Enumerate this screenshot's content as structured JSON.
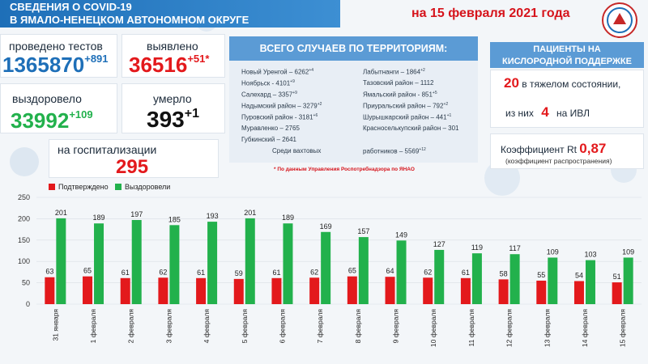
{
  "header": {
    "title_line1": "СВЕДЕНИЯ О COVID-19",
    "title_line2": "В ЯМАЛО-НЕНЕЦКОМ АВТОНОМНОМ ОКРУГЕ",
    "date": "на 15 февраля 2021 года"
  },
  "stats": {
    "tests_label": "проведено тестов",
    "tests_value": "1365870",
    "tests_delta": "+891",
    "detected_label": "выявлено",
    "detected_value": "36516",
    "detected_delta": "+51*",
    "recovered_label": "выздоровело",
    "recovered_value": "33992",
    "recovered_delta": "+109",
    "died_label": "умерло",
    "died_value": "393",
    "died_delta": "+1",
    "hosp_label": "на госпитализации",
    "hosp_value": "295"
  },
  "territory": {
    "title": "ВСЕГО СЛУЧАЕВ ПО ТЕРРИТОРИЯМ:",
    "left": [
      {
        "name": "Новый Уренгой – 6262",
        "d": "+4"
      },
      {
        "name": "Ноябрьск - 4101",
        "d": "+9"
      },
      {
        "name": "Салехард – 3357",
        "d": "+9"
      },
      {
        "name": "Надымский район – 3279",
        "d": "+2"
      },
      {
        "name": "Пуровский район - 3181",
        "d": "+6"
      },
      {
        "name": "Муравленко – 2765",
        "d": ""
      },
      {
        "name": "Губкинский – 2641",
        "d": ""
      }
    ],
    "right": [
      {
        "name": "Лабытнанги – 1864",
        "d": "+2"
      },
      {
        "name": "Тазовский район – 1112",
        "d": ""
      },
      {
        "name": "Ямальский район - 851",
        "d": "+5"
      },
      {
        "name": "Приуральский район – 792",
        "d": "+2"
      },
      {
        "name": "Шурышкарский район – 441",
        "d": "+1"
      },
      {
        "name": "Красноселькупский район – 301",
        "d": ""
      }
    ],
    "shift_label": "Среди вахтовых",
    "shift_value": "работников – 5569",
    "shift_delta": "+12",
    "note": "* По данным Управления Роспотребнадзора по ЯНАО"
  },
  "oxygen": {
    "title_line1": "ПАЦИЕНТЫ НА",
    "title_line2": "КИСЛОРОДНОЙ ПОДДЕРЖКЕ",
    "severe_value": "20",
    "severe_label": "в тяжелом состоянии,",
    "ivl_pre": "из них",
    "ivl_value": "4",
    "ivl_post": "на ИВЛ",
    "rt_label": "Коэффициент Rt",
    "rt_value": "0,87",
    "rt_sub": "(коэффициент распространения)"
  },
  "chart_data": {
    "type": "bar",
    "categories": [
      "31 января",
      "1 февраля",
      "2 февраля",
      "3 февраля",
      "4 февраля",
      "5 февраля",
      "6 февраля",
      "7 февраля",
      "8 февраля",
      "9 февраля",
      "10 февраля",
      "11 февраля",
      "12 февраля",
      "13 февраля",
      "14 февраля",
      "15 февраля"
    ],
    "series": [
      {
        "name": "Подтверждено",
        "color": "#e3191c",
        "values": [
          63,
          65,
          61,
          62,
          61,
          59,
          61,
          62,
          65,
          64,
          62,
          61,
          58,
          55,
          54,
          51
        ]
      },
      {
        "name": "Выздоровели",
        "color": "#22b14c",
        "values": [
          201,
          189,
          197,
          185,
          193,
          201,
          189,
          169,
          157,
          149,
          127,
          119,
          117,
          109,
          103,
          109
        ]
      }
    ],
    "yticks": [
      "0",
      "50",
      "100",
      "150",
      "200",
      "250"
    ],
    "ylim": [
      0,
      250
    ],
    "legend": "top-left"
  }
}
